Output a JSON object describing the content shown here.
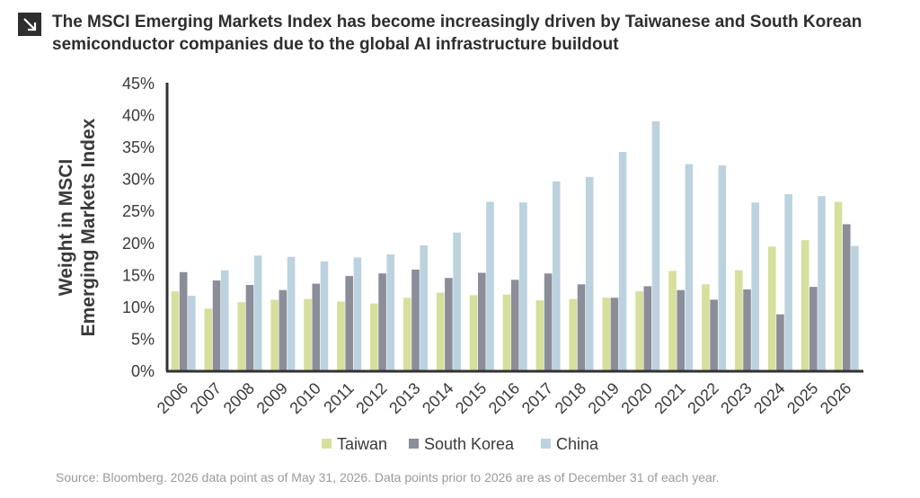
{
  "header": {
    "icon": "arrow-down-right-icon",
    "title_line1": "The MSCI Emerging Markets Index has become increasingly driven by Taiwanese and South Korean",
    "title_line2": "semiconductor companies due to the global AI infrastructure buildout"
  },
  "footer": {
    "source": "Source: Bloomberg. 2026 data point as of May 31, 2026. Data points prior to 2026 are as of December 31 of each year."
  },
  "chart_data": {
    "type": "bar",
    "ylabel_line1": "Weight in MSCI",
    "ylabel_line2": "Emerging Markets Index",
    "ylim": [
      0,
      45
    ],
    "yticks": [
      "0%",
      "5%",
      "10%",
      "15%",
      "20%",
      "25%",
      "30%",
      "35%",
      "40%",
      "45%"
    ],
    "grid": false,
    "legend_position": "bottom",
    "categories": [
      "2006",
      "2007",
      "2008",
      "2009",
      "2010",
      "2011",
      "2012",
      "2013",
      "2014",
      "2015",
      "2016",
      "2017",
      "2018",
      "2019",
      "2020",
      "2021",
      "2022",
      "2023",
      "2024",
      "2025",
      "2026"
    ],
    "series": [
      {
        "name": "Taiwan",
        "color": "#d6df9c",
        "values": [
          12.5,
          9.8,
          10.8,
          11.2,
          11.3,
          10.9,
          10.6,
          11.5,
          12.3,
          11.9,
          12.0,
          11.1,
          11.3,
          11.5,
          12.5,
          15.7,
          13.6,
          15.8,
          19.5,
          20.5,
          26.5
        ]
      },
      {
        "name": "South Korea",
        "color": "#8b8d99",
        "values": [
          15.5,
          14.2,
          13.5,
          12.7,
          13.7,
          14.9,
          15.3,
          15.9,
          14.6,
          15.4,
          14.3,
          15.3,
          13.6,
          11.5,
          13.3,
          12.7,
          11.2,
          12.8,
          8.9,
          13.2,
          23.0
        ]
      },
      {
        "name": "China",
        "color": "#bcd2df",
        "values": [
          11.8,
          15.8,
          18.1,
          17.9,
          17.2,
          17.8,
          18.3,
          19.7,
          21.7,
          26.5,
          26.4,
          29.7,
          30.4,
          34.3,
          39.1,
          32.4,
          32.2,
          26.4,
          27.7,
          27.4,
          19.6
        ]
      }
    ]
  }
}
